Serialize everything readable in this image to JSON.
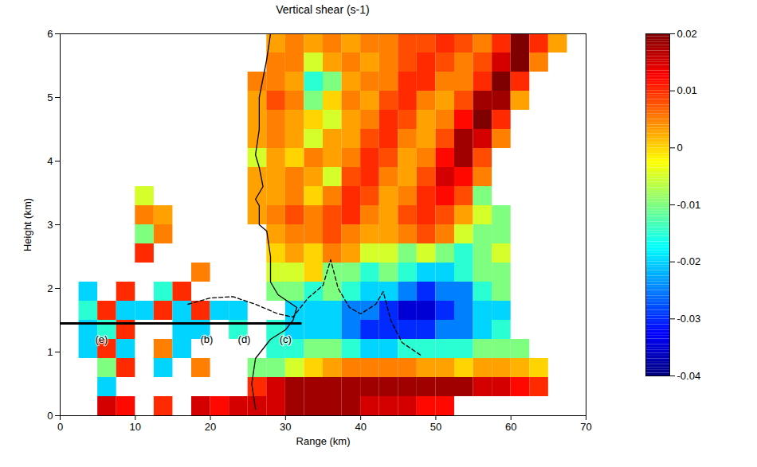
{
  "chart_data": {
    "type": "heatmap",
    "title": "Vertical shear (s-1)",
    "xlabel": "Range (km)",
    "ylabel": "Height (km)",
    "xlim": [
      0,
      70
    ],
    "ylim": [
      0,
      6
    ],
    "xticks": [
      0,
      10,
      20,
      30,
      40,
      50,
      60,
      70
    ],
    "yticks": [
      0,
      1,
      2,
      3,
      4,
      5,
      6
    ],
    "color_range": [
      -0.04,
      0.02
    ],
    "color_ticks": [
      -0.04,
      -0.03,
      -0.02,
      -0.01,
      0,
      0.01,
      0.02
    ],
    "range_bins": [
      0,
      2.5,
      5,
      7.5,
      10,
      12.5,
      15,
      17.5,
      20,
      22.5,
      25,
      27.5,
      30,
      32.5,
      35,
      37.5,
      40,
      42.5,
      45,
      47.5,
      50,
      52.5,
      55,
      57.5,
      60,
      62.5,
      65,
      67.5,
      70
    ],
    "height_bins": [
      0,
      0.3,
      0.6,
      0.9,
      1.2,
      1.5,
      1.8,
      2.1,
      2.4,
      2.7,
      3,
      3.3,
      3.6,
      3.9,
      4.2,
      4.5,
      4.8,
      5.1,
      5.4,
      5.7,
      6
    ],
    "values": [
      [
        null,
        null,
        0.015,
        0.012,
        null,
        0.01,
        null,
        0.015,
        0.012,
        0.015,
        0.015,
        0.015,
        0.018,
        0.018,
        0.018,
        0.018,
        0.015,
        0.015,
        0.015,
        0.012,
        0.012,
        null,
        null,
        null,
        null,
        null,
        null,
        null
      ],
      [
        null,
        null,
        -0.02,
        null,
        null,
        null,
        null,
        null,
        null,
        null,
        0.01,
        0.015,
        0.018,
        0.018,
        0.018,
        0.018,
        0.018,
        0.018,
        0.018,
        0.018,
        0.018,
        0.018,
        0.015,
        0.015,
        0.012,
        0.01,
        null,
        null
      ],
      [
        null,
        null,
        -0.01,
        0.01,
        null,
        -0.02,
        null,
        0.005,
        null,
        null,
        -0.01,
        -0.01,
        -0.005,
        0,
        0.003,
        0.005,
        0.005,
        0.005,
        0.005,
        0.003,
        0.003,
        0,
        0.003,
        0.003,
        0.002,
        0,
        null,
        null
      ],
      [
        null,
        -0.02,
        0.01,
        -0.02,
        null,
        0.005,
        -0.02,
        null,
        null,
        null,
        null,
        -0.015,
        -0.015,
        -0.01,
        -0.01,
        -0.015,
        -0.02,
        -0.02,
        -0.015,
        -0.015,
        -0.015,
        -0.015,
        -0.01,
        -0.01,
        -0.01,
        null,
        null,
        null
      ],
      [
        null,
        -0.02,
        -0.015,
        0.01,
        null,
        null,
        -0.02,
        -0.02,
        null,
        -0.015,
        null,
        -0.015,
        -0.02,
        -0.02,
        -0.02,
        -0.025,
        -0.03,
        -0.03,
        -0.03,
        -0.03,
        -0.025,
        -0.025,
        -0.02,
        -0.015,
        null,
        null,
        null,
        null
      ],
      [
        null,
        -0.015,
        0.01,
        -0.02,
        -0.02,
        0.01,
        -0.02,
        0.01,
        -0.02,
        -0.02,
        null,
        null,
        -0.02,
        -0.02,
        -0.02,
        -0.025,
        -0.025,
        -0.03,
        -0.035,
        -0.035,
        -0.03,
        -0.025,
        -0.02,
        -0.02,
        null,
        null,
        null,
        null
      ],
      [
        null,
        -0.02,
        null,
        0.01,
        null,
        -0.015,
        0.01,
        null,
        null,
        null,
        null,
        -0.01,
        -0.01,
        -0.015,
        -0.01,
        -0.015,
        -0.02,
        -0.02,
        -0.025,
        -0.03,
        -0.025,
        -0.025,
        -0.015,
        -0.01,
        null,
        null,
        null,
        null
      ],
      [
        null,
        null,
        null,
        null,
        null,
        null,
        null,
        0.005,
        null,
        null,
        null,
        -0.005,
        -0.005,
        0,
        -0.01,
        -0.01,
        -0.015,
        -0.01,
        -0.015,
        -0.02,
        -0.02,
        -0.015,
        -0.01,
        -0.01,
        null,
        null,
        null,
        null
      ],
      [
        null,
        null,
        null,
        null,
        0.01,
        null,
        null,
        null,
        null,
        null,
        null,
        0,
        0.003,
        0,
        0.005,
        0.003,
        -0.005,
        -0.005,
        -0.01,
        -0.005,
        -0.01,
        -0.015,
        -0.01,
        -0.005,
        null,
        null,
        null,
        null
      ],
      [
        null,
        null,
        null,
        null,
        -0.01,
        0.005,
        null,
        null,
        null,
        null,
        null,
        0.003,
        0.005,
        0.005,
        0.008,
        0.005,
        0.003,
        0.003,
        0.005,
        0.008,
        0.005,
        -0.005,
        -0.01,
        -0.01,
        null,
        null,
        null,
        null
      ],
      [
        null,
        null,
        null,
        null,
        0.005,
        0.003,
        null,
        null,
        null,
        null,
        0.003,
        0.005,
        0.008,
        0.005,
        0.008,
        0.01,
        0.005,
        0.003,
        0.008,
        0.01,
        0.008,
        0.003,
        -0.005,
        -0.01,
        null,
        null,
        null,
        null
      ],
      [
        null,
        null,
        null,
        null,
        -0.005,
        null,
        null,
        null,
        null,
        null,
        0.003,
        0.003,
        0.005,
        0,
        0.005,
        0.01,
        0.008,
        0.003,
        0.005,
        0.01,
        0.012,
        0.008,
        -0.01,
        null,
        null,
        null,
        null,
        null
      ],
      [
        null,
        null,
        null,
        null,
        null,
        null,
        null,
        null,
        null,
        null,
        0.003,
        0.003,
        0.005,
        0.003,
        -0.005,
        0.008,
        0.01,
        0.005,
        0.003,
        0.008,
        0.015,
        0.012,
        0.005,
        null,
        null,
        null,
        null,
        null
      ],
      [
        null,
        null,
        null,
        null,
        null,
        null,
        null,
        null,
        null,
        null,
        -0.005,
        0.003,
        0,
        0.005,
        0.003,
        0.005,
        0.01,
        0.008,
        0.003,
        0.005,
        0.012,
        0.018,
        0.008,
        null,
        null,
        null,
        null,
        null
      ],
      [
        null,
        null,
        null,
        null,
        null,
        null,
        null,
        null,
        null,
        null,
        0.003,
        0.005,
        0.003,
        -0.005,
        0.003,
        0.003,
        0.008,
        0.01,
        0.005,
        0.003,
        0.008,
        0.018,
        0.015,
        0.005,
        null,
        null,
        null,
        null
      ],
      [
        null,
        null,
        null,
        null,
        null,
        null,
        null,
        null,
        null,
        null,
        0.003,
        0.005,
        0.003,
        0,
        -0.005,
        0.003,
        0.005,
        0.01,
        0.008,
        0.003,
        0.005,
        0.012,
        0.02,
        0.01,
        null,
        null,
        null,
        null
      ],
      [
        null,
        null,
        null,
        null,
        null,
        null,
        null,
        null,
        null,
        null,
        0.003,
        0.008,
        0.005,
        -0.01,
        0,
        0.005,
        0.003,
        0.008,
        0.01,
        0.005,
        0.003,
        0.008,
        0.018,
        0.018,
        0.003,
        null,
        null,
        null
      ],
      [
        null,
        null,
        null,
        null,
        null,
        null,
        null,
        null,
        null,
        null,
        0.005,
        0.005,
        0.003,
        -0.015,
        -0.01,
        0.003,
        0.005,
        0.005,
        0.01,
        0.01,
        0.005,
        0.005,
        0.01,
        0.02,
        0.01,
        null,
        null,
        null
      ],
      [
        null,
        null,
        null,
        null,
        null,
        null,
        null,
        null,
        null,
        null,
        null,
        0.005,
        0.005,
        -0.005,
        0.003,
        0.005,
        0.003,
        0.005,
        0.008,
        0.01,
        0.008,
        0.005,
        0.008,
        0.015,
        0.02,
        0.005,
        null,
        null
      ],
      [
        null,
        null,
        null,
        null,
        null,
        null,
        null,
        null,
        null,
        null,
        null,
        0.003,
        0.005,
        0.003,
        0.005,
        0.003,
        0.005,
        0.005,
        0.008,
        0.008,
        0.01,
        0.008,
        0.005,
        0.01,
        0.02,
        0.01,
        0.003,
        null
      ]
    ],
    "lines": [
      {
        "x": [
          26,
          25.5,
          26,
          28,
          30,
          31,
          31.5,
          29,
          28,
          28,
          27.5,
          26.5,
          26.5,
          26,
          27,
          26.5,
          26,
          26.5,
          26.5,
          27,
          27.5,
          28
        ],
        "y": [
          0.1,
          0.5,
          0.9,
          1.2,
          1.35,
          1.5,
          1.7,
          1.9,
          2.1,
          2.5,
          2.9,
          3.0,
          3.3,
          3.4,
          3.6,
          3.9,
          4.1,
          4.5,
          5,
          5.3,
          5.6,
          6
        ],
        "line_style": "solid"
      },
      {
        "x": [
          17,
          20,
          23,
          26,
          29,
          31,
          33,
          35,
          36,
          37,
          38.5,
          40,
          42,
          43,
          44,
          45.5,
          48
        ],
        "y": [
          1.75,
          1.85,
          1.87,
          1.75,
          1.6,
          1.55,
          1.85,
          2.05,
          2.45,
          2.0,
          1.7,
          1.6,
          1.75,
          1.95,
          1.5,
          1.15,
          0.95
        ],
        "line_style": "dashed"
      },
      {
        "x": [
          0,
          32
        ],
        "y": [
          1.45,
          1.45
        ],
        "line_style": "thick"
      }
    ],
    "annotations": [
      {
        "text": "(e)",
        "x": 5.5,
        "y": 1.2
      },
      {
        "text": "(b)",
        "x": 19.5,
        "y": 1.2
      },
      {
        "text": "(d)",
        "x": 24.5,
        "y": 1.2
      },
      {
        "text": "(c)",
        "x": 30,
        "y": 1.2
      }
    ]
  }
}
